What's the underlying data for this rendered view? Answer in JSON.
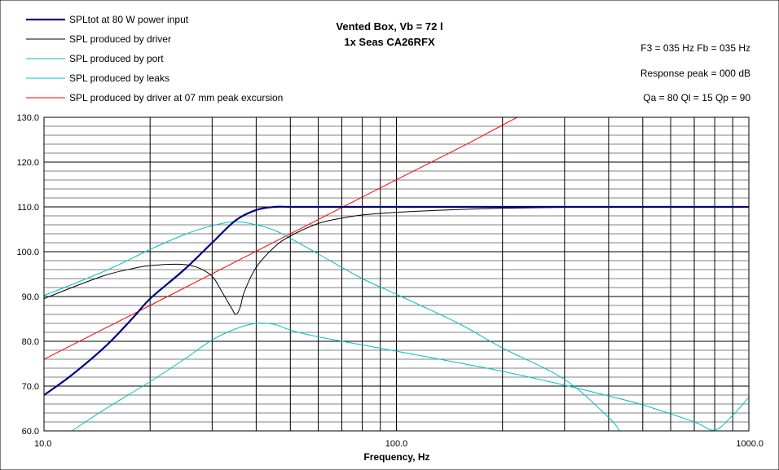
{
  "chart_data": {
    "type": "line",
    "title": "Vented Box, Vb = 72 l",
    "subtitle": "1x Seas CA26RFX",
    "xlabel": "Frequency, Hz",
    "ylabel": "",
    "x_scale": "log",
    "xlim": [
      10,
      1000
    ],
    "ylim": [
      60,
      130
    ],
    "grid": true,
    "legend_position": "top-left",
    "x_tick_labels": [
      "10.0",
      "100.0",
      "1000.0"
    ],
    "y_tick_labels": [
      "60.0",
      "70.0",
      "80.0",
      "90.0",
      "100.0",
      "110.0",
      "120.0",
      "130.0"
    ],
    "annotations": [
      "F3 = 035 Hz  Fb = 035 Hz",
      "Response peak = 000 dB",
      "Qa = 80  Ql = 15  Qp = 90"
    ],
    "series": [
      {
        "name": "SPLtot at 80 W power input",
        "color": "#000080",
        "width": 2.2,
        "points": [
          [
            10,
            68
          ],
          [
            12,
            72.5
          ],
          [
            15,
            79
          ],
          [
            18,
            85.5
          ],
          [
            20,
            89.5
          ],
          [
            25,
            96
          ],
          [
            30,
            102
          ],
          [
            35,
            107
          ],
          [
            40,
            109.3
          ],
          [
            45,
            110
          ],
          [
            50,
            110
          ],
          [
            60,
            110
          ],
          [
            100,
            110
          ],
          [
            200,
            110
          ],
          [
            500,
            110
          ],
          [
            1000,
            110
          ]
        ]
      },
      {
        "name": "SPL produced by driver",
        "color": "#000000",
        "width": 1,
        "points": [
          [
            10,
            89.5
          ],
          [
            12,
            92
          ],
          [
            15,
            94.8
          ],
          [
            18,
            96.3
          ],
          [
            20,
            96.9
          ],
          [
            24,
            97.2
          ],
          [
            27,
            96.6
          ],
          [
            30,
            94.5
          ],
          [
            32,
            91
          ],
          [
            34,
            87.5
          ],
          [
            35,
            86
          ],
          [
            36,
            87.5
          ],
          [
            37,
            91
          ],
          [
            40,
            96.5
          ],
          [
            45,
            101
          ],
          [
            50,
            103.5
          ],
          [
            60,
            106.3
          ],
          [
            70,
            107.5
          ],
          [
            80,
            108.2
          ],
          [
            100,
            108.8
          ],
          [
            150,
            109.4
          ],
          [
            200,
            109.7
          ],
          [
            300,
            109.9
          ],
          [
            500,
            110
          ],
          [
            1000,
            110
          ]
        ]
      },
      {
        "name": "SPL produced by port",
        "color": "#00C0C0",
        "width": 1,
        "points": [
          [
            10,
            90.2
          ],
          [
            15,
            95.8
          ],
          [
            20,
            100.5
          ],
          [
            25,
            103.8
          ],
          [
            30,
            105.8
          ],
          [
            35,
            106.7
          ],
          [
            40,
            106
          ],
          [
            45,
            104.8
          ],
          [
            50,
            103
          ],
          [
            60,
            99.5
          ],
          [
            80,
            94
          ],
          [
            100,
            90.5
          ],
          [
            150,
            84
          ],
          [
            200,
            78.5
          ],
          [
            300,
            71.5
          ],
          [
            400,
            63
          ],
          [
            430,
            60
          ]
        ]
      },
      {
        "name": "SPL produced by leaks",
        "color": "#00C0C0",
        "width": 1,
        "points": [
          [
            12,
            60
          ],
          [
            15,
            65
          ],
          [
            20,
            71
          ],
          [
            25,
            76
          ],
          [
            30,
            80.3
          ],
          [
            35,
            82.8
          ],
          [
            40,
            84
          ],
          [
            45,
            83.8
          ],
          [
            50,
            82.5
          ],
          [
            60,
            81
          ],
          [
            80,
            79.2
          ],
          [
            100,
            77.8
          ],
          [
            150,
            75.2
          ],
          [
            200,
            73.3
          ],
          [
            300,
            70.2
          ],
          [
            400,
            67.8
          ],
          [
            500,
            65.8
          ],
          [
            700,
            62
          ],
          [
            800,
            60.2
          ],
          [
            900,
            63.5
          ],
          [
            1000,
            67.5
          ]
        ]
      },
      {
        "name": "SPL produced by driver at 07 mm peak excursion",
        "color": "#FF0000",
        "width": 1,
        "points": [
          [
            10,
            76
          ],
          [
            20,
            88
          ],
          [
            40,
            100.1
          ],
          [
            80,
            112.2
          ],
          [
            160,
            124.2
          ],
          [
            220,
            130
          ]
        ]
      }
    ]
  }
}
